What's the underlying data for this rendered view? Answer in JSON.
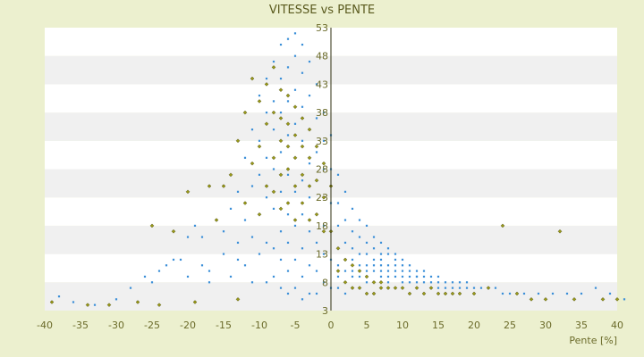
{
  "chart_data": {
    "type": "scatter",
    "title": "VITESSE vs PENTE",
    "xlabel": "Pente [%]",
    "ylabel": "",
    "xlim": [
      -40,
      40
    ],
    "ylim": [
      3,
      53
    ],
    "x_ticks": [
      -40,
      -35,
      -30,
      -25,
      -20,
      -15,
      -10,
      -5,
      0,
      5,
      10,
      15,
      20,
      25,
      30,
      35,
      40
    ],
    "y_ticks": [
      3,
      8,
      13,
      18,
      23,
      28,
      33,
      38,
      43,
      48,
      53
    ],
    "grid": "horizontal bands",
    "legend": "none",
    "colors": {
      "background": "#ecf0cf",
      "band_light": "#ffffff",
      "band_dark": "#f0f0f0",
      "series_1": "#3b8fd8",
      "series_2": "#9a9a18",
      "axis": "#2f2f10",
      "text": "#6b6b2a"
    },
    "series": [
      {
        "color": "#3b8fd8",
        "marker": "dot",
        "x": [
          -38,
          -36,
          -33,
          -30,
          -28,
          -26,
          -25,
          -24,
          -23,
          -22,
          -21,
          -20,
          -20,
          -19,
          -18,
          -18,
          -17,
          -17,
          -16,
          -15,
          -15,
          -14,
          -14,
          -13,
          -13,
          -13,
          -12,
          -12,
          -12,
          -11,
          -11,
          -11,
          -11,
          -10,
          -10,
          -10,
          -10,
          -10,
          -9,
          -9,
          -9,
          -9,
          -9,
          -9,
          -8,
          -8,
          -8,
          -8,
          -8,
          -8,
          -8,
          -7,
          -7,
          -7,
          -7,
          -7,
          -7,
          -7,
          -7,
          -6,
          -6,
          -6,
          -6,
          -6,
          -6,
          -6,
          -6,
          -6,
          -5,
          -5,
          -5,
          -5,
          -5,
          -5,
          -5,
          -5,
          -5,
          -4,
          -4,
          -4,
          -4,
          -4,
          -4,
          -4,
          -4,
          -4,
          -3,
          -3,
          -3,
          -3,
          -3,
          -3,
          -3,
          -3,
          -2,
          -2,
          -2,
          -2,
          -2,
          -2,
          -2,
          -2,
          -1,
          -1,
          -1,
          -1,
          -1,
          -1,
          -1,
          0,
          0,
          0,
          0,
          0,
          0,
          1,
          1,
          1,
          1,
          1,
          1,
          1,
          2,
          2,
          2,
          2,
          2,
          2,
          2,
          3,
          3,
          3,
          3,
          3,
          3,
          3,
          4,
          4,
          4,
          4,
          4,
          4,
          4,
          5,
          5,
          5,
          5,
          5,
          5,
          5,
          6,
          6,
          6,
          6,
          6,
          6,
          7,
          7,
          7,
          7,
          7,
          7,
          8,
          8,
          8,
          8,
          8,
          8,
          9,
          9,
          9,
          9,
          9,
          10,
          10,
          10,
          10,
          10,
          11,
          11,
          11,
          11,
          12,
          12,
          12,
          12,
          13,
          13,
          13,
          14,
          14,
          14,
          15,
          15,
          15,
          16,
          16,
          17,
          17,
          18,
          18,
          19,
          19,
          20,
          21,
          22,
          23,
          24,
          25,
          27,
          29,
          31,
          33,
          35,
          37,
          39,
          41
        ],
        "y": [
          5.5,
          4.5,
          4,
          5,
          7,
          9,
          8,
          10,
          11,
          12,
          12,
          16,
          9,
          18,
          11,
          16,
          8,
          10,
          19,
          13,
          17,
          21,
          9,
          24,
          15,
          12,
          30,
          19,
          11,
          35,
          25,
          16,
          8,
          41,
          33,
          27,
          20,
          13,
          44,
          38,
          30,
          23,
          15,
          8,
          47,
          40,
          35,
          28,
          21,
          14,
          9,
          50,
          44,
          38,
          31,
          24,
          17,
          12,
          7,
          51,
          46,
          40,
          34,
          27,
          20,
          15,
          10,
          6,
          52,
          48,
          42,
          36,
          30,
          24,
          18,
          12,
          7,
          50,
          45,
          39,
          33,
          26,
          20,
          14,
          9,
          5,
          47,
          41,
          35,
          29,
          23,
          17,
          11,
          6,
          43,
          37,
          31,
          26,
          20,
          15,
          10,
          6,
          38,
          33,
          28,
          23,
          18,
          13,
          8,
          34,
          28,
          22,
          17,
          12,
          7,
          27,
          22,
          18,
          14,
          11,
          9,
          7,
          24,
          19,
          15,
          12,
          10,
          8,
          6,
          21,
          17,
          14,
          12,
          10,
          9,
          7,
          19,
          16,
          13,
          11,
          10,
          9,
          7,
          18,
          15,
          13,
          11,
          10,
          9,
          8,
          16,
          14,
          12,
          11,
          10,
          8,
          15,
          13,
          12,
          11,
          10,
          9,
          14,
          13,
          11,
          10,
          9,
          8,
          13,
          12,
          11,
          10,
          9,
          12,
          11,
          10,
          9,
          8,
          11,
          10,
          9,
          8,
          10,
          9,
          9,
          8,
          10,
          9,
          8,
          9,
          8,
          7,
          9,
          8,
          7,
          8,
          7,
          8,
          7,
          8,
          7,
          8,
          7,
          7,
          7,
          7,
          7,
          6,
          6,
          6,
          6,
          6,
          6,
          6,
          7,
          6,
          5
        ]
      },
      {
        "color": "#9a9a18",
        "marker": "diamond",
        "x": [
          -39,
          -34,
          -31,
          -27,
          -25,
          -24,
          -22,
          -20,
          -19,
          -17,
          -16,
          -15,
          -14,
          -13,
          -13,
          -12,
          -12,
          -11,
          -11,
          -10,
          -10,
          -10,
          -9,
          -9,
          -9,
          -8,
          -8,
          -8,
          -8,
          -7,
          -7,
          -7,
          -7,
          -7,
          -6,
          -6,
          -6,
          -6,
          -6,
          -5,
          -5,
          -5,
          -5,
          -5,
          -4,
          -4,
          -4,
          -4,
          -3,
          -3,
          -3,
          -3,
          -2,
          -2,
          -2,
          -1,
          -1,
          -1,
          0,
          0,
          1,
          1,
          2,
          2,
          3,
          3,
          4,
          4,
          5,
          5,
          6,
          6,
          7,
          7,
          8,
          9,
          10,
          11,
          12,
          13,
          14,
          15,
          16,
          17,
          18,
          20,
          22,
          24,
          26,
          28,
          30,
          32,
          34,
          38,
          40
        ],
        "y": [
          4.5,
          4,
          4,
          4.5,
          18,
          4,
          17,
          24,
          4.5,
          25,
          19,
          25,
          27,
          33,
          5,
          22,
          38,
          29,
          44,
          40,
          32,
          20,
          43,
          36,
          25,
          46,
          38,
          30,
          24,
          42,
          37,
          33,
          27,
          21,
          41,
          36,
          32,
          28,
          22,
          39,
          34,
          30,
          25,
          19,
          37,
          32,
          27,
          22,
          35,
          30,
          25,
          19,
          32,
          26,
          20,
          29,
          23,
          17,
          25,
          17,
          14,
          10,
          12,
          8,
          11,
          7,
          10,
          7,
          9,
          6,
          8,
          6,
          8,
          7,
          7,
          7,
          7,
          6,
          7,
          6,
          7,
          6,
          6,
          6,
          6,
          6,
          7,
          18,
          6,
          5,
          5,
          17,
          5,
          5,
          5
        ]
      }
    ]
  }
}
